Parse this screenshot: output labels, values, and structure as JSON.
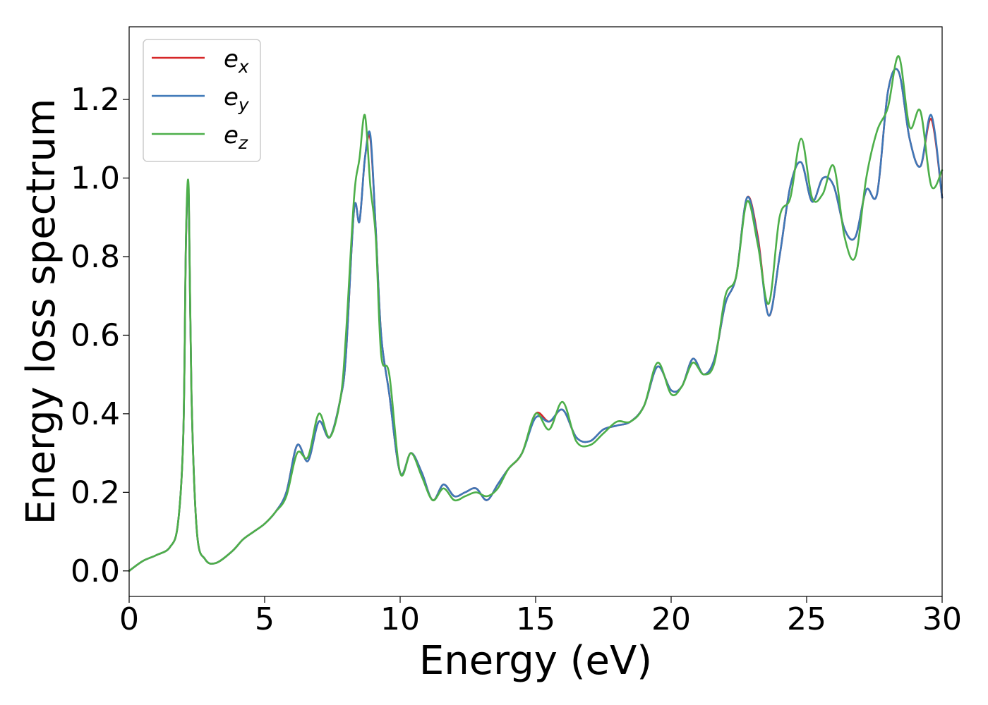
{
  "chart_data": {
    "type": "line",
    "title": "",
    "xlabel": "Energy (eV)",
    "ylabel": "Energy loss spectrum",
    "xlim": [
      0,
      30
    ],
    "ylim": [
      -0.065,
      1.385
    ],
    "xticks": [
      0,
      5,
      10,
      15,
      20,
      25,
      30
    ],
    "yticks": [
      0.0,
      0.2,
      0.4,
      0.6,
      0.8,
      1.0,
      1.2
    ],
    "grid": false,
    "legend_position": "upper-left",
    "series": [
      {
        "name": "e",
        "subscript": "x",
        "color": "#d62728",
        "x": [
          0.0,
          0.5,
          1.0,
          1.5,
          1.8,
          2.0,
          2.1,
          2.2,
          2.3,
          2.5,
          2.8,
          3.2,
          3.8,
          4.2,
          4.6,
          5.0,
          5.4,
          5.8,
          6.2,
          6.6,
          7.0,
          7.4,
          7.8,
          8.0,
          8.3,
          8.5,
          8.7,
          8.9,
          9.1,
          9.3,
          9.6,
          10.0,
          10.4,
          10.8,
          11.2,
          11.6,
          12.0,
          12.4,
          12.8,
          13.2,
          13.6,
          14.0,
          14.5,
          15.0,
          15.5,
          16.0,
          16.5,
          17.0,
          17.5,
          18.0,
          18.5,
          19.0,
          19.5,
          20.0,
          20.4,
          20.8,
          21.2,
          21.6,
          22.0,
          22.4,
          22.8,
          23.2,
          23.6,
          24.0,
          24.4,
          24.8,
          25.2,
          25.6,
          26.0,
          26.4,
          26.8,
          27.2,
          27.6,
          28.0,
          28.4,
          28.8,
          29.2,
          29.6,
          30.0
        ],
        "y": [
          0.0,
          0.025,
          0.04,
          0.06,
          0.12,
          0.35,
          0.85,
          0.95,
          0.45,
          0.1,
          0.03,
          0.02,
          0.05,
          0.08,
          0.1,
          0.12,
          0.15,
          0.2,
          0.32,
          0.28,
          0.38,
          0.34,
          0.44,
          0.55,
          0.92,
          0.89,
          1.05,
          1.1,
          0.87,
          0.6,
          0.45,
          0.25,
          0.3,
          0.25,
          0.18,
          0.22,
          0.19,
          0.2,
          0.21,
          0.18,
          0.22,
          0.26,
          0.3,
          0.4,
          0.38,
          0.41,
          0.34,
          0.33,
          0.36,
          0.37,
          0.38,
          0.42,
          0.52,
          0.46,
          0.47,
          0.54,
          0.5,
          0.54,
          0.68,
          0.75,
          0.95,
          0.85,
          0.65,
          0.8,
          0.98,
          1.04,
          0.94,
          1.0,
          0.98,
          0.87,
          0.85,
          0.97,
          0.96,
          1.22,
          1.27,
          1.1,
          1.03,
          1.15,
          0.95
        ]
      },
      {
        "name": "e",
        "subscript": "y",
        "color": "#3e78b8",
        "x": [
          0.0,
          0.5,
          1.0,
          1.5,
          1.8,
          2.0,
          2.1,
          2.2,
          2.3,
          2.5,
          2.8,
          3.2,
          3.8,
          4.2,
          4.6,
          5.0,
          5.4,
          5.8,
          6.2,
          6.6,
          7.0,
          7.4,
          7.8,
          8.0,
          8.3,
          8.5,
          8.7,
          8.9,
          9.1,
          9.3,
          9.6,
          10.0,
          10.4,
          10.8,
          11.2,
          11.6,
          12.0,
          12.4,
          12.8,
          13.2,
          13.6,
          14.0,
          14.5,
          15.0,
          15.5,
          16.0,
          16.5,
          17.0,
          17.5,
          18.0,
          18.5,
          19.0,
          19.5,
          20.0,
          20.4,
          20.8,
          21.2,
          21.6,
          22.0,
          22.4,
          22.8,
          23.2,
          23.6,
          24.0,
          24.4,
          24.8,
          25.2,
          25.6,
          26.0,
          26.4,
          26.8,
          27.2,
          27.6,
          28.0,
          28.4,
          28.8,
          29.2,
          29.6,
          30.0
        ],
        "y": [
          0.0,
          0.025,
          0.04,
          0.06,
          0.12,
          0.35,
          0.85,
          0.95,
          0.45,
          0.1,
          0.03,
          0.02,
          0.05,
          0.08,
          0.1,
          0.12,
          0.15,
          0.2,
          0.32,
          0.28,
          0.38,
          0.34,
          0.44,
          0.55,
          0.92,
          0.89,
          1.05,
          1.11,
          0.87,
          0.6,
          0.45,
          0.25,
          0.3,
          0.25,
          0.18,
          0.22,
          0.19,
          0.2,
          0.21,
          0.18,
          0.22,
          0.26,
          0.3,
          0.39,
          0.38,
          0.41,
          0.34,
          0.33,
          0.36,
          0.37,
          0.38,
          0.42,
          0.52,
          0.46,
          0.47,
          0.54,
          0.5,
          0.54,
          0.68,
          0.75,
          0.95,
          0.84,
          0.65,
          0.8,
          0.98,
          1.04,
          0.94,
          1.0,
          0.98,
          0.87,
          0.85,
          0.97,
          0.96,
          1.22,
          1.27,
          1.1,
          1.03,
          1.16,
          0.95
        ]
      },
      {
        "name": "e",
        "subscript": "z",
        "color": "#4daf4a",
        "x": [
          0.0,
          0.5,
          1.0,
          1.5,
          1.8,
          2.0,
          2.1,
          2.2,
          2.3,
          2.5,
          2.8,
          3.2,
          3.8,
          4.2,
          4.6,
          5.0,
          5.4,
          5.8,
          6.2,
          6.6,
          7.0,
          7.4,
          7.8,
          8.0,
          8.3,
          8.5,
          8.7,
          8.9,
          9.1,
          9.3,
          9.6,
          10.0,
          10.4,
          10.8,
          11.2,
          11.6,
          12.0,
          12.4,
          12.8,
          13.2,
          13.6,
          14.0,
          14.5,
          15.0,
          15.5,
          16.0,
          16.5,
          17.0,
          17.5,
          18.0,
          18.5,
          19.0,
          19.5,
          20.0,
          20.4,
          20.8,
          21.2,
          21.6,
          22.0,
          22.4,
          22.8,
          23.2,
          23.6,
          24.0,
          24.4,
          24.8,
          25.2,
          25.6,
          26.0,
          26.4,
          26.8,
          27.2,
          27.6,
          28.0,
          28.4,
          28.8,
          29.2,
          29.6,
          30.0
        ],
        "y": [
          0.0,
          0.025,
          0.04,
          0.06,
          0.12,
          0.35,
          0.86,
          0.97,
          0.45,
          0.1,
          0.03,
          0.02,
          0.05,
          0.08,
          0.1,
          0.12,
          0.15,
          0.19,
          0.3,
          0.29,
          0.4,
          0.34,
          0.44,
          0.6,
          0.95,
          1.05,
          1.16,
          0.98,
          0.85,
          0.55,
          0.5,
          0.25,
          0.3,
          0.24,
          0.18,
          0.21,
          0.18,
          0.19,
          0.2,
          0.19,
          0.21,
          0.26,
          0.3,
          0.4,
          0.36,
          0.43,
          0.33,
          0.32,
          0.35,
          0.38,
          0.38,
          0.42,
          0.53,
          0.45,
          0.47,
          0.53,
          0.5,
          0.53,
          0.7,
          0.75,
          0.94,
          0.83,
          0.68,
          0.9,
          0.95,
          1.1,
          0.95,
          0.96,
          1.03,
          0.85,
          0.8,
          1.0,
          1.12,
          1.18,
          1.31,
          1.13,
          1.17,
          0.98,
          1.02
        ]
      }
    ]
  }
}
